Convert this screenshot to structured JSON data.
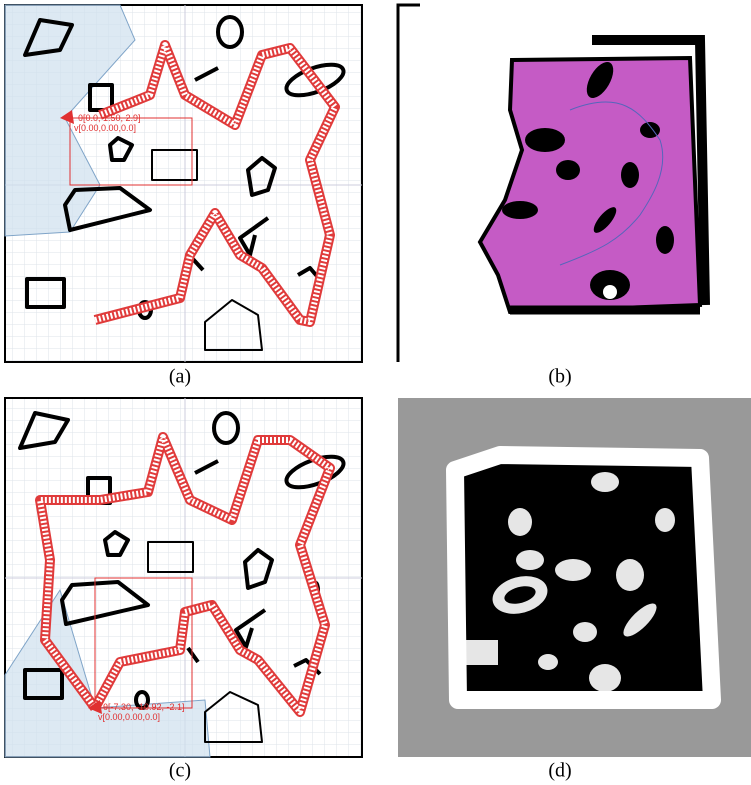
{
  "panels": [
    {
      "label": "(a)",
      "pose": "θ[0.0, 1.50, 2.9]",
      "velocity": "v[0.00,0.00,0.0]"
    },
    {
      "label": "(b)"
    },
    {
      "label": "(c)",
      "pose": "θ[-7.30, -10.92, -2.1]",
      "velocity": "v[0.00,0.00,0.0]"
    },
    {
      "label": "(d)"
    }
  ]
}
